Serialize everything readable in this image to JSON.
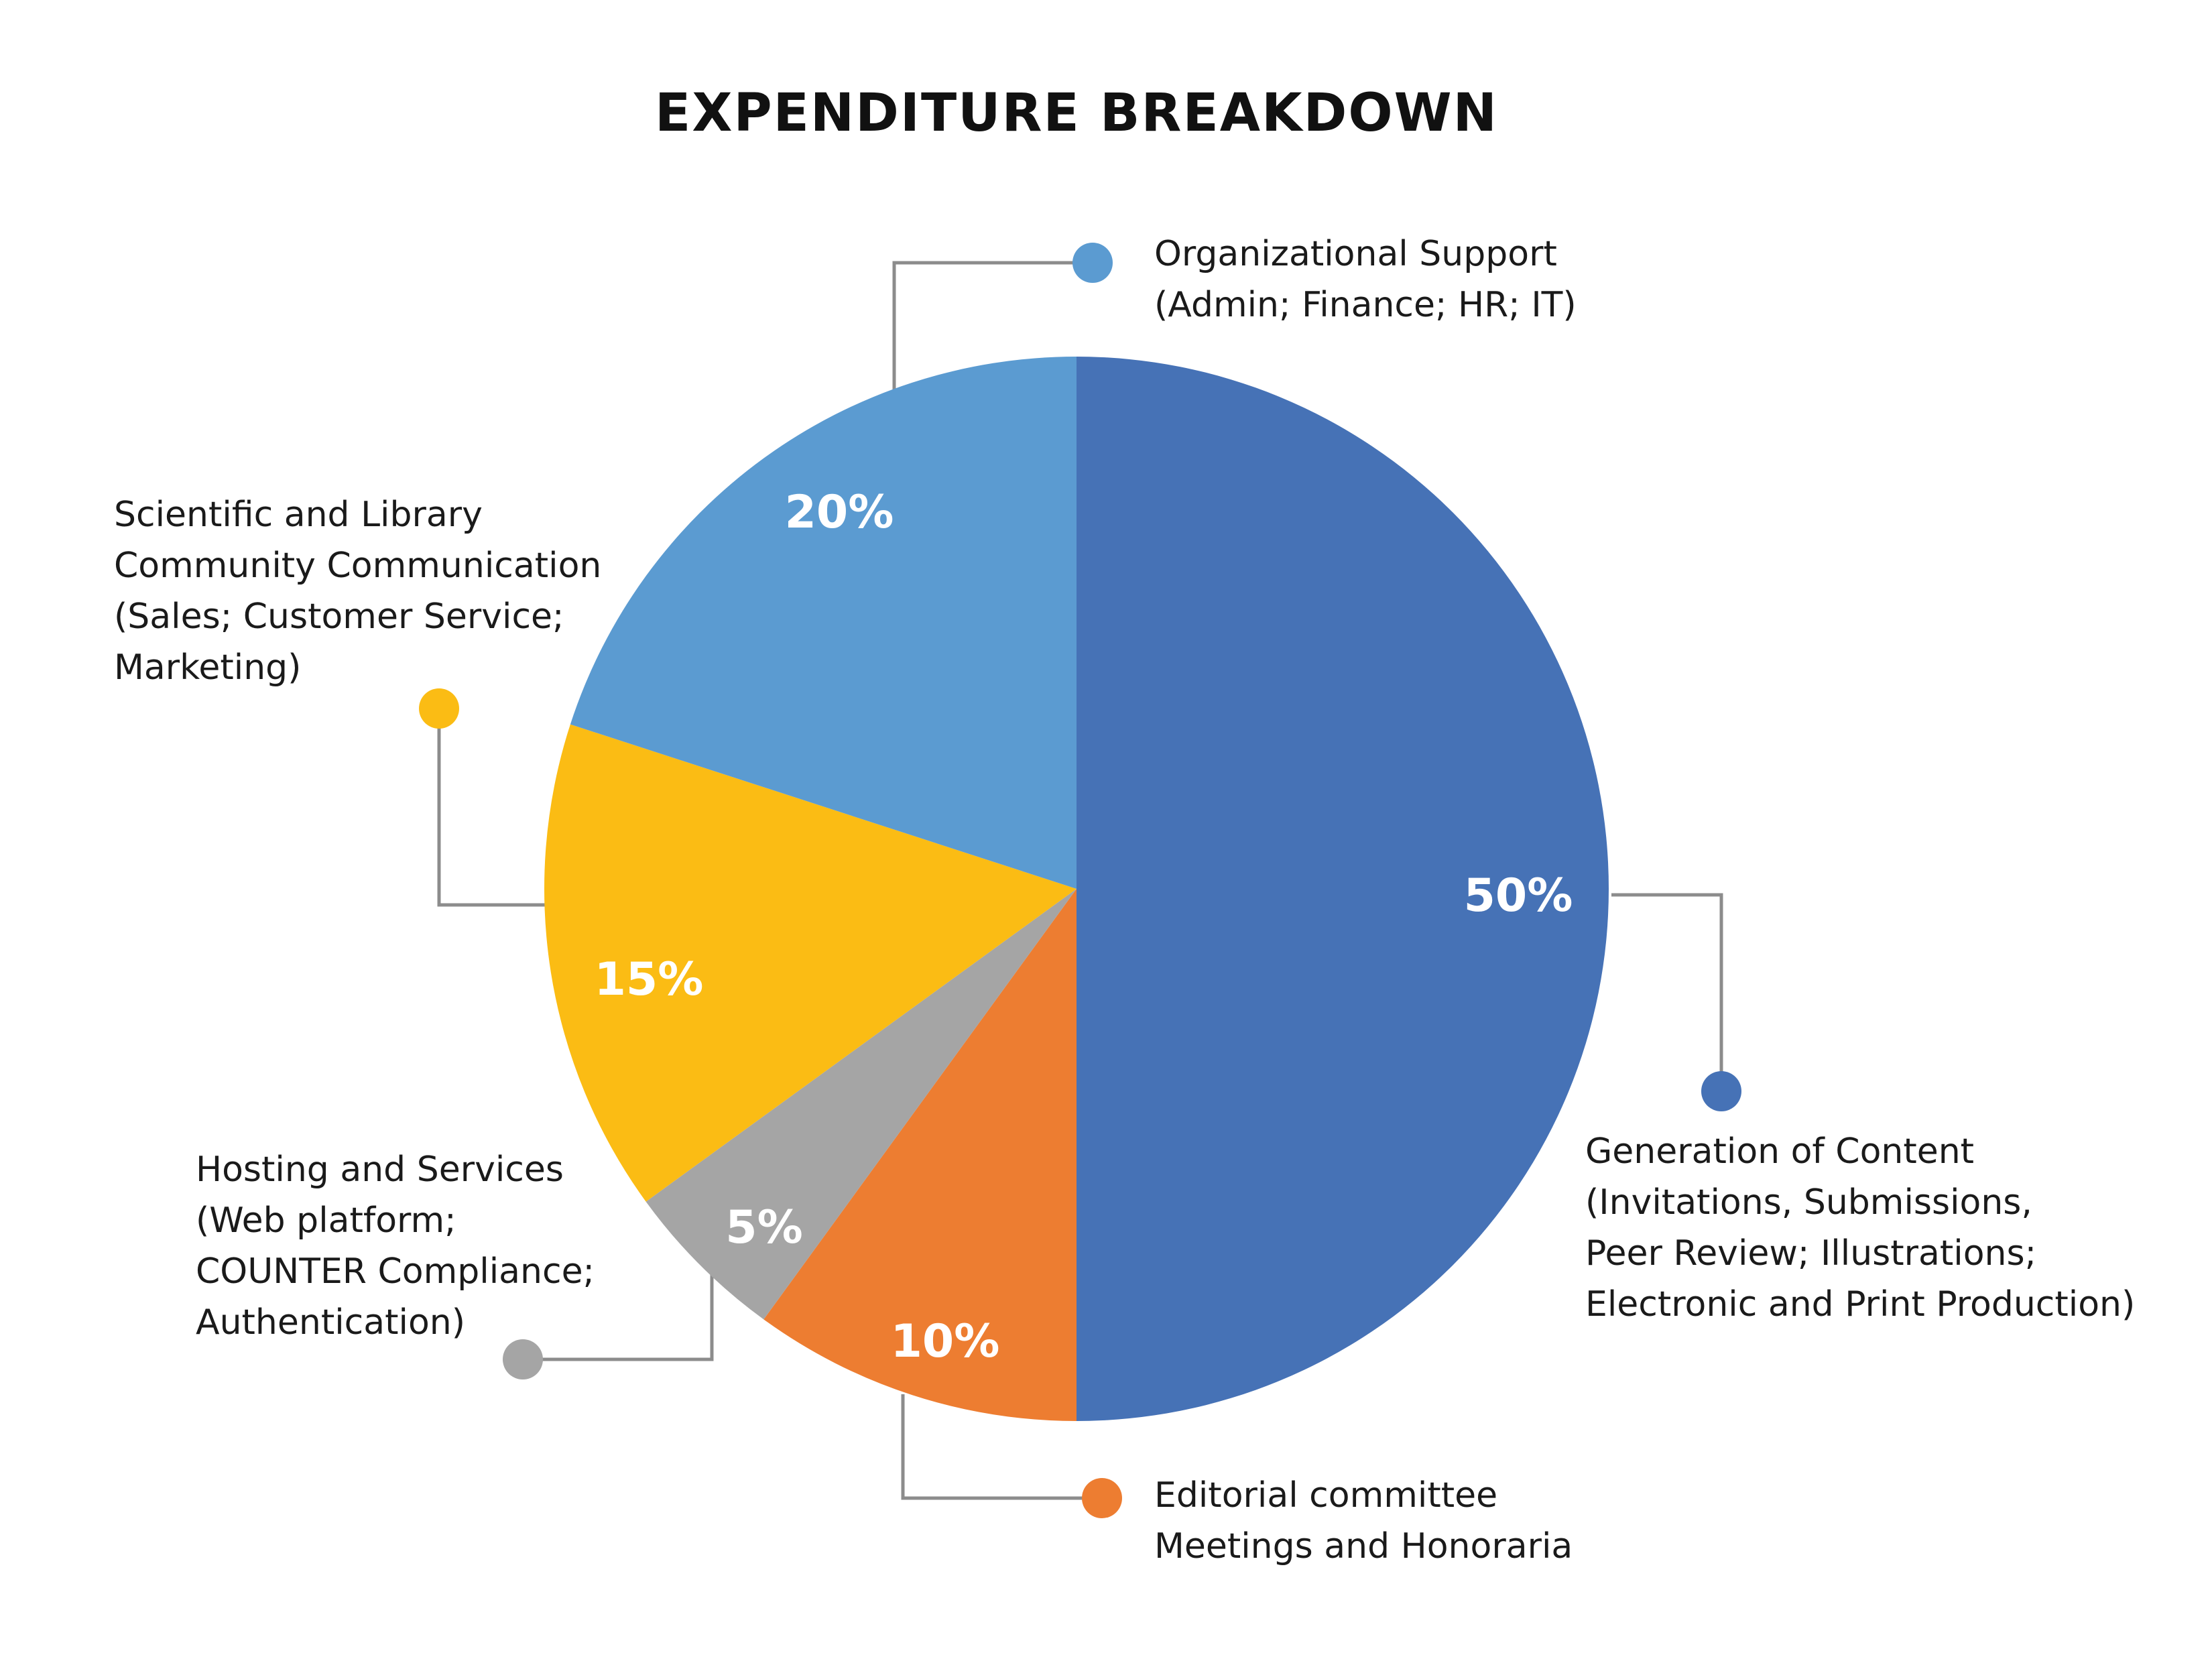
{
  "chart_data": {
    "type": "pie",
    "title": "EXPENDITURE BREAKDOWN",
    "slices": [
      {
        "percent_label": "50%",
        "value": 50,
        "color": "#4672b6",
        "label_lines": [
          "Generation of Content",
          "(Invitations, Submissions,",
          "Peer Review; Illustrations;",
          "Electronic and Print Production)"
        ]
      },
      {
        "percent_label": "10%",
        "value": 10,
        "color": "#ed7d31",
        "label_lines": [
          "Editorial committee",
          "Meetings and Honoraria"
        ]
      },
      {
        "percent_label": "5%",
        "value": 5,
        "color": "#a5a5a5",
        "label_lines": [
          "Hosting and Services",
          "(Web platform;",
          "COUNTER Compliance;",
          "Authentication)"
        ]
      },
      {
        "percent_label": "15%",
        "value": 15,
        "color": "#fbbc14",
        "label_lines": [
          "Scientific and Library",
          "Community Communication",
          "(Sales; Customer Service;",
          "Marketing)"
        ]
      },
      {
        "percent_label": "20%",
        "value": 20,
        "color": "#5b9bd1",
        "label_lines": [
          "Organizational Support",
          "(Admin; Finance; HR; IT)"
        ]
      }
    ]
  }
}
